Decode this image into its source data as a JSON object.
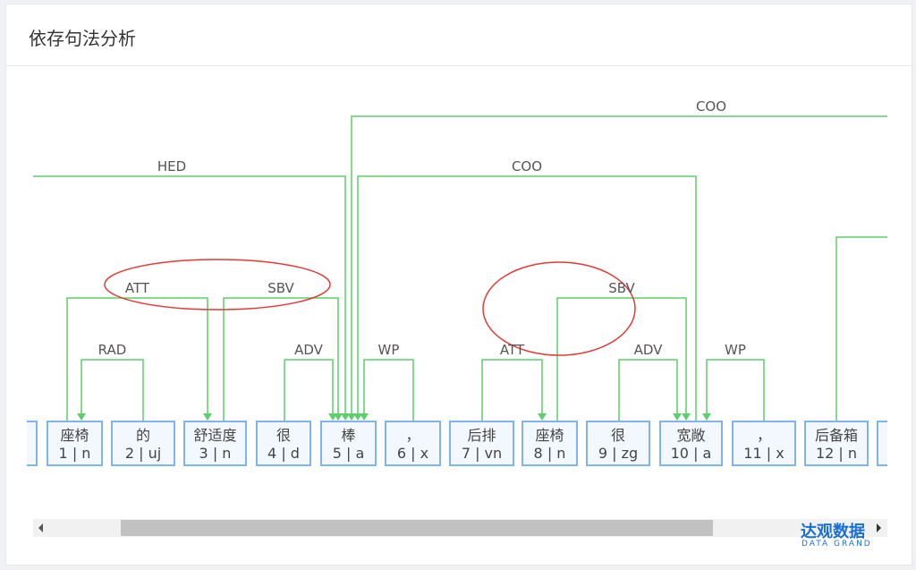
{
  "header": {
    "title": "依存句法分析"
  },
  "colors": {
    "edge": "#5ccf6a",
    "token_border": "#7fb5ef",
    "highlight": "#e53935",
    "brand": "#1a6fd6"
  },
  "tokens": [
    {
      "word": "座椅",
      "tag": "1 | n"
    },
    {
      "word": "的",
      "tag": "2 | uj"
    },
    {
      "word": "舒适度",
      "tag": "3 | n"
    },
    {
      "word": "很",
      "tag": "4 | d"
    },
    {
      "word": "棒",
      "tag": "5 | a"
    },
    {
      "word": "，",
      "tag": "6 | x"
    },
    {
      "word": "后排",
      "tag": "7 | vn"
    },
    {
      "word": "座椅",
      "tag": "8 | n"
    },
    {
      "word": "很",
      "tag": "9 | zg"
    },
    {
      "word": "宽敞",
      "tag": "10 | a"
    },
    {
      "word": "，",
      "tag": "11 | x"
    },
    {
      "word": "后备箱",
      "tag": "12 | n"
    }
  ],
  "edges": [
    {
      "label": "HED",
      "from": 0,
      "to": 5
    },
    {
      "label": "COO",
      "from": 5,
      "to": "offscreen"
    },
    {
      "label": "COO",
      "from": 10,
      "to": 5
    },
    {
      "label": "ATT",
      "from": 1,
      "to": 3
    },
    {
      "label": "RAD",
      "from": 2,
      "to": 1
    },
    {
      "label": "SBV",
      "from": 3,
      "to": 5
    },
    {
      "label": "ADV",
      "from": 4,
      "to": 5
    },
    {
      "label": "WP",
      "from": 6,
      "to": 5
    },
    {
      "label": "ATT",
      "from": 7,
      "to": 8
    },
    {
      "label": "SBV",
      "from": 8,
      "to": 10
    },
    {
      "label": "ADV",
      "from": 9,
      "to": 10
    },
    {
      "label": "WP",
      "from": 11,
      "to": 10
    }
  ],
  "brand": {
    "name": "达观数据",
    "sub": "DATA GRAND"
  }
}
